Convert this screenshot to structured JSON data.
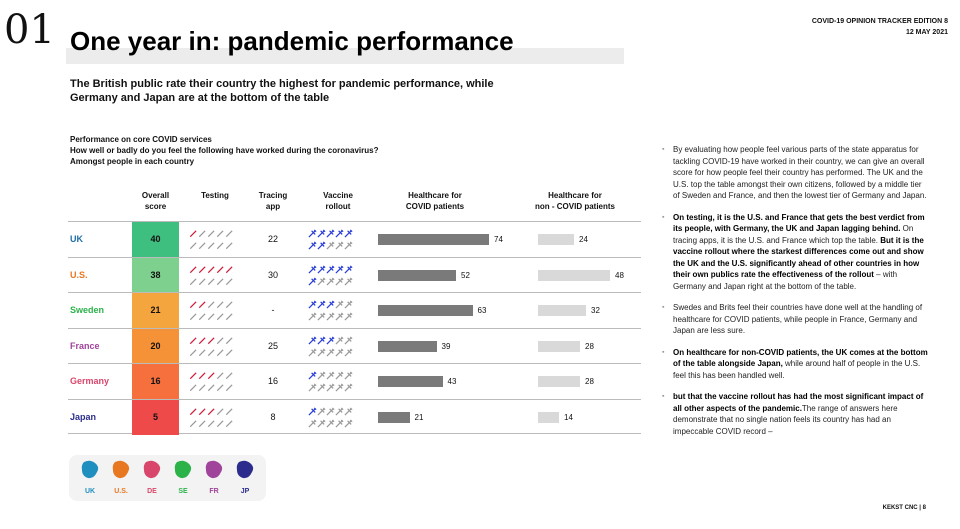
{
  "header": {
    "section_number": "01",
    "title": "One year in: pandemic performance",
    "tracker_line": "COVID-19 OPINION TRACKER EDITION  8",
    "date_line": "12 MAY 2021"
  },
  "subtitle": "The British public rate their country the highest for pandemic performance, while Germany and Japan are at the bottom of the table",
  "question": {
    "line1": "Performance on core COVID services",
    "line2": "How well or badly do you feel the following have worked during the coronavirus?",
    "line3": "Amongst people in each country"
  },
  "columns": {
    "score": [
      "Overall",
      "score"
    ],
    "testing": "Testing",
    "tracing": [
      "Tracing",
      "app"
    ],
    "vaccine": [
      "Vaccine",
      "rollout"
    ],
    "hc_covid": [
      "Healthcare for",
      "COVID patients"
    ],
    "hc_non": [
      "Healthcare for",
      "non - COVID patients"
    ]
  },
  "chart_data": {
    "type": "table",
    "rows": [
      {
        "country": "UK",
        "color": "#1f6fa8",
        "score": "40",
        "score_color": "#3fbf7f",
        "testing_filled": 1,
        "tracing": "22",
        "vaccine_filled": 7,
        "hc_covid": 74,
        "hc_non": 24
      },
      {
        "country": "U.S.",
        "color": "#e87722",
        "score": "38",
        "score_color": "#7ed08e",
        "testing_filled": 5,
        "tracing": "30",
        "vaccine_filled": 6,
        "hc_covid": 52,
        "hc_non": 48
      },
      {
        "country": "Sweden",
        "color": "#2bb34a",
        "score": "21",
        "score_color": "#f5a53d",
        "testing_filled": 2,
        "tracing": "-",
        "vaccine_filled": 3,
        "hc_covid": 63,
        "hc_non": 32
      },
      {
        "country": "France",
        "color": "#a0449b",
        "score": "20",
        "score_color": "#f59136",
        "testing_filled": 3,
        "tracing": "25",
        "vaccine_filled": 3,
        "hc_covid": 39,
        "hc_non": 28
      },
      {
        "country": "Germany",
        "color": "#d9466b",
        "score": "16",
        "score_color": "#f5703d",
        "testing_filled": 3,
        "tracing": "16",
        "vaccine_filled": 1,
        "hc_covid": 43,
        "hc_non": 28
      },
      {
        "country": "Japan",
        "color": "#2c2c8c",
        "score": "5",
        "score_color": "#ee4a4a",
        "testing_filled": 3,
        "tracing": "8",
        "vaccine_filled": 1,
        "hc_covid": 21,
        "hc_non": 14
      }
    ],
    "icon_total": 10,
    "icon_colors": {
      "testing": "#cc1f3c",
      "vaccine": "#2a3fd6",
      "empty": "#9a9a9a"
    }
  },
  "legend": [
    {
      "label": "UK",
      "color": "#1f8fc0"
    },
    {
      "label": "U.S.",
      "color": "#e87722"
    },
    {
      "label": "DE",
      "color": "#d9466b"
    },
    {
      "label": "SE",
      "color": "#2bb34a"
    },
    {
      "label": "FR",
      "color": "#a0449b"
    },
    {
      "label": "JP",
      "color": "#2c2c8c"
    }
  ],
  "bullets": [
    {
      "text": "By evaluating how people feel various parts of the state apparatus for tackling COVID-19 have worked in their country, we can give an overall score for how people feel their country has performed. The UK and the U.S. top the table amongst their own citizens, followed by a middle tier of Sweden and France, and then the lowest tier of Germany and Japan."
    },
    {
      "bold1": "On testing, it is the U.S. and France that gets the best verdict from its people, with Germany, the UK and Japan lagging behind.",
      "text1": " On tracing apps, it is the U.S. and France which top the table. ",
      "bold2": "But it is the vaccine rollout where the starkest differences come out and show the UK and the U.S. significantly ahead of other countries in how their own publics rate the effectiveness of the rollout",
      "text2": " – with Germany and Japan right at the bottom of the table."
    },
    {
      "text": "Swedes and Brits feel their countries have done well at the handling of healthcare for COVID patients, while people in France, Germany and Japan are less sure."
    },
    {
      "bold1": "On healthcare for non-COVID patients, the UK comes at the bottom of the table alongside Japan,",
      "text1": " while around half of people in the U.S. feel this has been handled well."
    },
    {
      "text1": "The range of answers here demonstrate that no single nation feels its country has had an impeccable COVID record – ",
      "bold1": "but that the vaccine rollout has had the most significant impact of all other aspects of the pandemic."
    }
  ],
  "footer": "KEKST CNC | 8"
}
